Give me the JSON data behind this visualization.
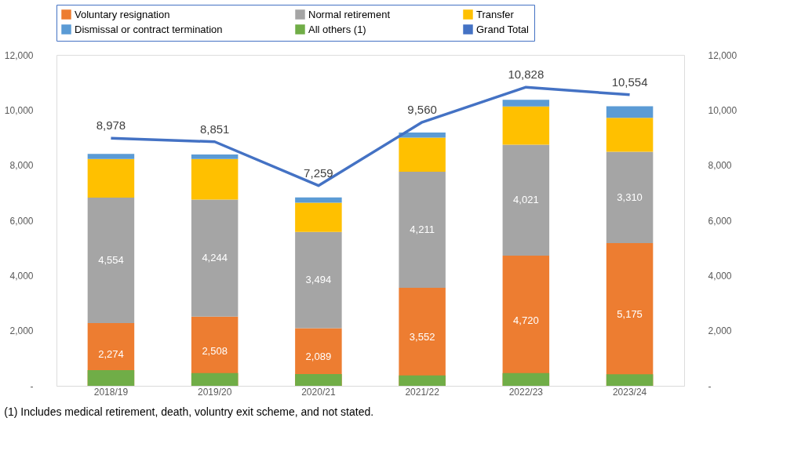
{
  "chart_data": {
    "type": "bar",
    "legend": "top",
    "categories": [
      "2018/19",
      "2019/20",
      "2020/21",
      "2021/22",
      "2022/23",
      "2023/24"
    ],
    "series": [
      {
        "name": "Voluntary resignation",
        "color": "#ed7d31",
        "base": [
          0,
          0,
          0,
          0,
          0,
          0
        ],
        "values": [
          2274,
          2508,
          2089,
          3552,
          4720,
          5175
        ],
        "value_labels": [
          "2,274",
          "2,508",
          "2,089",
          "3,552",
          "4,720",
          "5,175"
        ]
      },
      {
        "name": "Normal retirement",
        "color": "#a5a5a5",
        "base": [
          2274,
          2508,
          2089,
          3552,
          4720,
          5175
        ],
        "values": [
          4554,
          4244,
          3494,
          4211,
          4021,
          3310
        ],
        "value_labels": [
          "4,554",
          "4,244",
          "3,494",
          "4,211",
          "4,021",
          "3,310"
        ]
      },
      {
        "name": "Transfer",
        "color": "#ffc000",
        "base": [
          6828,
          6752,
          5583,
          7763,
          8741,
          8485
        ],
        "values": [
          1400,
          1470,
          1060,
          1240,
          1390,
          1230
        ]
      },
      {
        "name": "Dismissal or contract termination",
        "color": "#5b9bd5",
        "base": [
          8228,
          8222,
          6643,
          9003,
          10131,
          9715
        ],
        "values": [
          180,
          170,
          190,
          180,
          240,
          420
        ]
      },
      {
        "name": "All others (1)",
        "color": "#70ad47",
        "base": [
          0,
          0,
          0,
          0,
          0,
          0
        ],
        "values": [
          570,
          460,
          430,
          380,
          460,
          420
        ]
      },
      {
        "name": "Grand Total",
        "type": "line",
        "axis": "y2",
        "color": "#4472c4",
        "values": [
          8978,
          8851,
          7259,
          9560,
          10828,
          10554
        ],
        "value_labels": [
          "8,978",
          "8,851",
          "7,259",
          "9,560",
          "10,828",
          "10,554"
        ]
      }
    ],
    "ylim": [
      0,
      12000
    ],
    "yticks": [
      {
        "value": 0,
        "label": "-"
      },
      {
        "value": 2000,
        "label": "2,000"
      },
      {
        "value": 4000,
        "label": "4,000"
      },
      {
        "value": 6000,
        "label": "6,000"
      },
      {
        "value": 8000,
        "label": "8,000"
      },
      {
        "value": 10000,
        "label": "10,000"
      },
      {
        "value": 12000,
        "label": "12,000"
      }
    ],
    "y2lim": [
      0,
      12000
    ],
    "y2ticks": [
      {
        "value": 0,
        "label": "-"
      },
      {
        "value": 2000,
        "label": "2,000"
      },
      {
        "value": 4000,
        "label": "4,000"
      },
      {
        "value": 6000,
        "label": "6,000"
      },
      {
        "value": 8000,
        "label": "8,000"
      },
      {
        "value": 10000,
        "label": "10,000"
      },
      {
        "value": 12000,
        "label": "12,000"
      }
    ],
    "grid": false,
    "annotations": [
      "(1) Includes medical retirement, death, voluntry exit scheme, and not stated."
    ]
  }
}
